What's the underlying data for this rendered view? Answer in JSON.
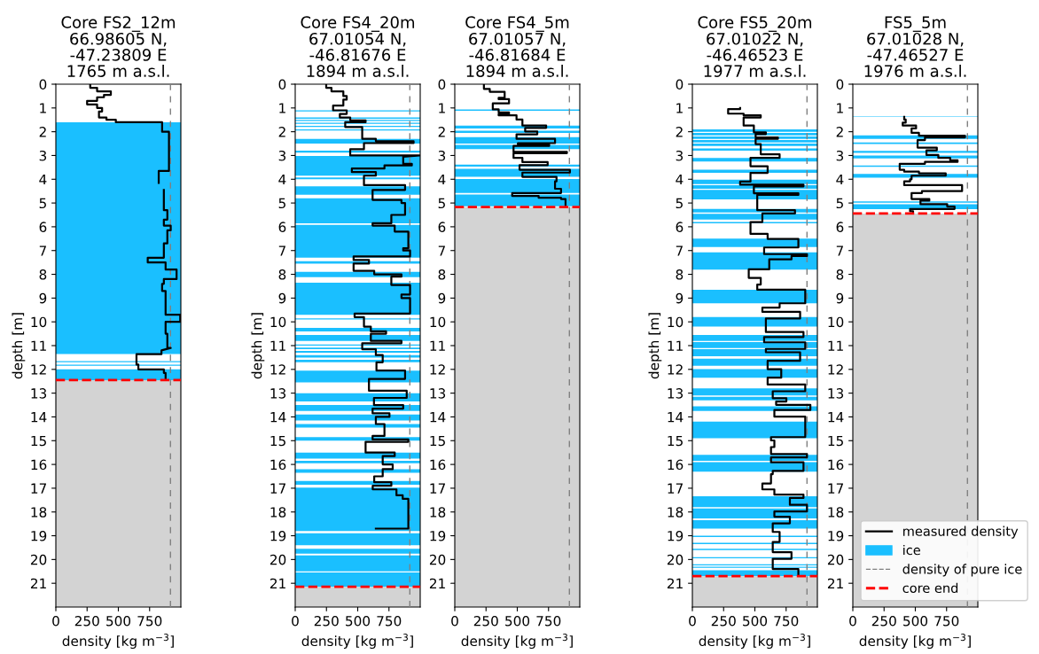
{
  "chart_data": [
    {
      "type": "line",
      "title": "Core FS2_12m\n66.98605 N,\n-47.23809 E\n1765 m a.s.l.",
      "xlabel": "density [kg m$^{−3}$]",
      "ylabel": "depth [m]",
      "xlim": [
        0,
        1000
      ],
      "ylim": [
        22,
        0
      ],
      "xticks": [
        0,
        250,
        500,
        750
      ],
      "yticks": [
        0,
        1,
        2,
        3,
        4,
        5,
        6,
        7,
        8,
        9,
        10,
        11,
        12,
        13,
        14,
        15,
        16,
        17,
        18,
        19,
        20,
        21
      ],
      "series": [
        {
          "color": "#000000",
          "x": [
            275,
            275,
            330,
            330,
            440,
            440,
            385,
            385,
            330,
            330,
            250,
            250,
            330,
            330,
            370,
            370,
            345,
            345,
            405,
            405,
            480,
            480,
            850,
            850,
            905,
            905,
            823,
            823,
            null,
            864,
            864,
            892,
            892,
            864,
            864,
            919,
            919,
            892,
            892,
            864,
            864,
            735,
            735,
            878,
            878,
            966,
            966,
            864,
            864,
            850,
            850,
            878,
            878,
            995,
            995,
            878,
            878,
            892,
            892,
            919,
            845,
            845,
            645,
            645,
            660,
            660,
            864,
            864,
            878,
            878
          ],
          "values": [
            0,
            0.15,
            0.15,
            0.3,
            0.3,
            0.45,
            0.45,
            0.55,
            0.55,
            0.7,
            0.7,
            0.85,
            0.85,
            1.0,
            1.0,
            1.15,
            1.15,
            1.4,
            1.4,
            1.5,
            1.5,
            1.6,
            1.6,
            2.0,
            2.0,
            3.65,
            3.65,
            4.15,
            null,
            4.45,
            5.3,
            5.3,
            5.7,
            5.7,
            5.95,
            5.95,
            6.15,
            6.15,
            6.7,
            6.7,
            7.3,
            7.3,
            7.5,
            7.5,
            7.8,
            7.8,
            8.2,
            8.2,
            8.4,
            8.4,
            8.7,
            8.7,
            9.7,
            9.7,
            10.0,
            10.0,
            10.5,
            10.5,
            11.1,
            11.1,
            11.2,
            11.36,
            11.36,
            11.8,
            11.8,
            12.0,
            12.0,
            12.15,
            12.15,
            12.45
          ]
        }
      ],
      "bands": [
        {
          "axis": "y",
          "from": 1.6,
          "to": 11.35,
          "color": "#1abfff"
        },
        {
          "axis": "y",
          "from": 11.65,
          "to": 11.7,
          "color": "#1abfff"
        },
        {
          "axis": "y",
          "from": 11.8,
          "to": 11.85,
          "color": "#1abfff"
        },
        {
          "axis": "y",
          "from": 12.0,
          "to": 12.45,
          "color": "#1abfff"
        },
        {
          "axis": "y",
          "from": 12.45,
          "to": 22,
          "color": "#d3d3d3"
        }
      ],
      "ref_lines": [
        {
          "axis": "x",
          "value": 917,
          "color": "#808080",
          "line_style": "dashed"
        },
        {
          "axis": "y",
          "value": 12.45,
          "color": "#ff0000",
          "line_style": "dashed"
        }
      ]
    },
    {
      "type": "line",
      "title": "Core FS4_20m\n67.01054 N,\n-46.81676 E\n1894 m a.s.l.",
      "xlabel": "density [kg m$^{−3}$]",
      "ylabel": "depth [m]",
      "xlim": [
        0,
        1000
      ],
      "ylim": [
        22,
        0
      ],
      "xticks": [
        0,
        250,
        500,
        750
      ],
      "yticks": [
        0,
        1,
        2,
        3,
        4,
        5,
        6,
        7,
        8,
        9,
        10,
        11,
        12,
        13,
        14,
        15,
        16,
        17,
        18,
        19,
        20,
        21
      ],
      "series": [
        {
          "color": "#000000",
          "x": [
            248,
            248,
            290,
            290,
            385,
            385,
            412,
            412,
            385,
            385,
            303,
            303,
            412,
            412,
            357,
            357,
            440,
            440,
            563,
            563,
            400,
            400,
            536,
            536,
            645,
            645,
            947,
            947,
            550,
            550,
            440,
            440,
            995,
            864,
            864,
            933,
            933,
            714,
            714,
            453,
            453,
            645,
            645,
            550,
            550,
            879,
            879,
            619,
            619,
            850,
            850,
            879,
            879,
            769,
            769,
            619,
            619,
            796,
            796,
            905,
            905,
            864,
            864,
            919,
            919,
            467,
            467,
            590,
            590,
            467,
            467,
            632,
            632,
            850,
            850,
            769,
            769,
            919,
            919,
            850,
            850,
            919,
            919,
            475,
            475,
            550,
            550,
            605,
            605,
            727,
            727,
            605,
            605,
            850,
            850,
            536,
            536,
            645,
            645,
            700,
            700,
            650,
            650,
            879,
            879,
            590,
            590,
            892,
            892,
            630,
            630,
            864,
            864,
            619,
            619,
            754,
            754,
            645,
            645,
            714,
            714,
            619,
            619,
            905,
            905,
            563,
            563,
            796,
            796,
            700,
            700,
            780,
            780,
            700,
            700,
            632,
            632,
            769,
            769,
            620,
            620,
            810,
            810,
            860,
            860,
            905,
            905,
            645
          ],
          "values": [
            0,
            0.15,
            0.15,
            0.3,
            0.3,
            0.5,
            0.5,
            0.65,
            0.65,
            0.9,
            0.9,
            1.1,
            1.1,
            1.25,
            1.25,
            1.4,
            1.4,
            1.52,
            1.52,
            1.6,
            1.6,
            1.8,
            1.8,
            2.3,
            2.3,
            2.4,
            2.4,
            2.48,
            2.48,
            2.74,
            2.74,
            3.0,
            3.0,
            3.05,
            3.35,
            3.35,
            3.42,
            3.42,
            3.55,
            3.55,
            3.7,
            3.7,
            3.85,
            3.85,
            4.25,
            4.25,
            4.45,
            4.45,
            4.87,
            4.87,
            5.0,
            5.0,
            5.5,
            5.5,
            5.85,
            5.85,
            5.95,
            5.95,
            6.2,
            6.2,
            6.9,
            6.9,
            7.0,
            7.0,
            7.25,
            7.25,
            7.4,
            7.4,
            7.55,
            7.55,
            7.85,
            7.85,
            8.0,
            8.0,
            8.1,
            8.1,
            8.45,
            8.45,
            8.85,
            8.85,
            9.0,
            9.0,
            9.65,
            9.65,
            9.8,
            9.8,
            10.2,
            10.2,
            10.4,
            10.4,
            10.5,
            10.5,
            10.8,
            10.8,
            10.9,
            10.9,
            11.15,
            11.15,
            11.4,
            11.4,
            11.7,
            11.7,
            12.05,
            12.05,
            12.4,
            12.4,
            12.9,
            12.9,
            13.2,
            13.2,
            13.5,
            13.5,
            13.65,
            13.65,
            13.85,
            13.85,
            14.0,
            14.0,
            14.3,
            14.3,
            14.8,
            14.8,
            14.95,
            14.95,
            15.05,
            15.05,
            15.5,
            15.5,
            15.65,
            15.65,
            16.0,
            16.0,
            16.2,
            16.2,
            16.5,
            16.5,
            16.75,
            16.75,
            16.9,
            16.9,
            17.05,
            17.05,
            17.3,
            17.3,
            17.45,
            17.45,
            18.7,
            18.7
          ]
        }
      ],
      "bands": [
        {
          "axis": "y",
          "from": 1.1,
          "to": 1.15,
          "color": "#1abfff"
        },
        {
          "axis": "y",
          "from": 1.4,
          "to": 1.45,
          "color": "#1abfff"
        },
        {
          "axis": "y",
          "from": 1.5,
          "to": 1.55,
          "color": "#1abfff"
        },
        {
          "axis": "y",
          "from": 1.62,
          "to": 1.67,
          "color": "#1abfff"
        },
        {
          "axis": "y",
          "from": 1.75,
          "to": 1.8,
          "color": "#1abfff"
        },
        {
          "axis": "y",
          "from": 1.9,
          "to": 1.95,
          "color": "#1abfff"
        },
        {
          "axis": "y",
          "from": 2.3,
          "to": 2.5,
          "color": "#1abfff"
        },
        {
          "axis": "y",
          "from": 2.8,
          "to": 2.88,
          "color": "#1abfff"
        },
        {
          "axis": "y",
          "from": 3.02,
          "to": 3.85,
          "color": "#1abfff"
        },
        {
          "axis": "y",
          "from": 3.92,
          "to": 4.0,
          "color": "#1abfff"
        },
        {
          "axis": "y",
          "from": 4.3,
          "to": 4.65,
          "color": "#1abfff"
        },
        {
          "axis": "y",
          "from": 4.8,
          "to": 5.85,
          "color": "#1abfff"
        },
        {
          "axis": "y",
          "from": 5.92,
          "to": 7.3,
          "color": "#1abfff"
        },
        {
          "axis": "y",
          "from": 7.45,
          "to": 7.55,
          "color": "#1abfff"
        },
        {
          "axis": "y",
          "from": 7.9,
          "to": 8.12,
          "color": "#1abfff"
        },
        {
          "axis": "y",
          "from": 8.35,
          "to": 9.7,
          "color": "#1abfff"
        },
        {
          "axis": "y",
          "from": 9.85,
          "to": 9.9,
          "color": "#1abfff"
        },
        {
          "axis": "y",
          "from": 10.25,
          "to": 10.4,
          "color": "#1abfff"
        },
        {
          "axis": "y",
          "from": 10.55,
          "to": 10.8,
          "color": "#1abfff"
        },
        {
          "axis": "y",
          "from": 10.95,
          "to": 11.0,
          "color": "#1abfff"
        },
        {
          "axis": "y",
          "from": 11.08,
          "to": 11.15,
          "color": "#1abfff"
        },
        {
          "axis": "y",
          "from": 11.22,
          "to": 11.3,
          "color": "#1abfff"
        },
        {
          "axis": "y",
          "from": 11.4,
          "to": 11.5,
          "color": "#1abfff"
        },
        {
          "axis": "y",
          "from": 11.6,
          "to": 11.7,
          "color": "#1abfff"
        },
        {
          "axis": "y",
          "from": 12.05,
          "to": 12.55,
          "color": "#1abfff"
        },
        {
          "axis": "y",
          "from": 13.0,
          "to": 13.35,
          "color": "#1abfff"
        },
        {
          "axis": "y",
          "from": 13.5,
          "to": 13.75,
          "color": "#1abfff"
        },
        {
          "axis": "y",
          "from": 13.9,
          "to": 14.15,
          "color": "#1abfff"
        },
        {
          "axis": "y",
          "from": 14.3,
          "to": 14.45,
          "color": "#1abfff"
        },
        {
          "axis": "y",
          "from": 14.85,
          "to": 15.0,
          "color": "#1abfff"
        },
        {
          "axis": "y",
          "from": 15.5,
          "to": 15.75,
          "color": "#1abfff"
        },
        {
          "axis": "y",
          "from": 15.85,
          "to": 15.95,
          "color": "#1abfff"
        },
        {
          "axis": "y",
          "from": 16.2,
          "to": 16.35,
          "color": "#1abfff"
        },
        {
          "axis": "y",
          "from": 16.7,
          "to": 16.85,
          "color": "#1abfff"
        },
        {
          "axis": "y",
          "from": 16.98,
          "to": 18.8,
          "color": "#1abfff"
        },
        {
          "axis": "y",
          "from": 18.9,
          "to": 19.4,
          "color": "#1abfff"
        },
        {
          "axis": "y",
          "from": 19.55,
          "to": 19.75,
          "color": "#1abfff"
        },
        {
          "axis": "y",
          "from": 19.83,
          "to": 20.5,
          "color": "#1abfff"
        },
        {
          "axis": "y",
          "from": 20.55,
          "to": 21.15,
          "color": "#1abfff"
        },
        {
          "axis": "y",
          "from": 21.15,
          "to": 22,
          "color": "#d3d3d3"
        }
      ],
      "ref_lines": [
        {
          "axis": "x",
          "value": 917,
          "color": "#808080",
          "line_style": "dashed"
        },
        {
          "axis": "y",
          "value": 21.15,
          "color": "#ff0000",
          "line_style": "dashed"
        }
      ]
    },
    {
      "type": "line",
      "title": "Core FS4_5m\n67.01057 N,\n-46.81684 E\n1894 m a.s.l.",
      "xlabel": "density [kg m$^{−3}$]",
      "xlim": [
        0,
        1000
      ],
      "ylim": [
        22,
        0
      ],
      "xticks": [
        0,
        250,
        500,
        750
      ],
      "yticks": [
        0,
        1,
        2,
        3,
        4,
        5,
        6,
        7,
        8,
        9,
        10,
        11,
        12,
        13,
        14,
        15,
        16,
        17,
        18,
        19,
        20,
        21
      ],
      "series": [
        {
          "color": "#000000",
          "x": [
            233,
            233,
            280,
            280,
            399,
            399,
            351,
            351,
            434,
            434,
            304,
            304,
            351,
            351,
            434,
            434,
            351,
            351,
            494,
            494,
            541,
            541,
            731,
            731,
            563,
            563,
            660,
            660,
            494,
            494,
            802,
            802,
            505,
            505,
            755,
            755,
            470,
            470,
            897,
            897,
            470,
            470,
            541,
            541,
            743,
            743,
            518,
            518,
            921,
            921,
            541,
            541,
            814,
            814,
            802,
            802,
            850,
            850,
            459,
            459,
            671,
            671,
            850,
            850,
            886,
            886
          ],
          "values": [
            0,
            0.2,
            0.2,
            0.32,
            0.32,
            0.57,
            0.57,
            0.63,
            0.63,
            0.81,
            0.81,
            1.06,
            1.06,
            1.19,
            1.19,
            1.25,
            1.25,
            1.31,
            1.31,
            1.49,
            1.49,
            1.74,
            1.74,
            1.84,
            1.84,
            1.99,
            1.99,
            2.11,
            2.11,
            2.3,
            2.3,
            2.48,
            2.48,
            2.54,
            2.54,
            2.6,
            2.6,
            2.85,
            2.85,
            2.9,
            2.9,
            3.1,
            3.1,
            3.28,
            3.28,
            3.41,
            3.41,
            3.6,
            3.6,
            3.72,
            3.72,
            3.9,
            3.9,
            4.09,
            4.09,
            4.4,
            4.4,
            4.58,
            4.58,
            4.7,
            4.7,
            4.78,
            4.78,
            4.83,
            4.83,
            5.17
          ]
        }
      ],
      "bands": [
        {
          "axis": "y",
          "from": 1.06,
          "to": 1.12,
          "color": "#1abfff"
        },
        {
          "axis": "y",
          "from": 1.74,
          "to": 1.86,
          "color": "#1abfff"
        },
        {
          "axis": "y",
          "from": 1.96,
          "to": 2.05,
          "color": "#1abfff"
        },
        {
          "axis": "y",
          "from": 2.23,
          "to": 2.5,
          "color": "#1abfff"
        },
        {
          "axis": "y",
          "from": 2.55,
          "to": 2.73,
          "color": "#1abfff"
        },
        {
          "axis": "y",
          "from": 3.38,
          "to": 3.47,
          "color": "#1abfff"
        },
        {
          "axis": "y",
          "from": 3.56,
          "to": 3.9,
          "color": "#1abfff"
        },
        {
          "axis": "y",
          "from": 3.99,
          "to": 4.58,
          "color": "#1abfff"
        },
        {
          "axis": "y",
          "from": 4.64,
          "to": 5.14,
          "color": "#1abfff"
        },
        {
          "axis": "y",
          "from": 5.17,
          "to": 22,
          "color": "#d3d3d3"
        }
      ],
      "ref_lines": [
        {
          "axis": "x",
          "value": 917,
          "color": "#808080",
          "line_style": "dashed"
        },
        {
          "axis": "y",
          "value": 5.17,
          "color": "#ff0000",
          "line_style": "dashed"
        }
      ]
    },
    {
      "type": "line",
      "title": "Core FS5_20m\n67.01022 N,\n-46.46523 E\n1977 m a.s.l.",
      "xlabel": "density [kg m$^{−3}$]",
      "ylabel": "depth [m]",
      "xlim": [
        0,
        1000
      ],
      "ylim": [
        22,
        0
      ],
      "xticks": [
        0,
        250,
        500,
        750
      ],
      "yticks": [
        0,
        1,
        2,
        3,
        4,
        5,
        6,
        7,
        8,
        9,
        10,
        11,
        12,
        13,
        14,
        15,
        16,
        17,
        18,
        19,
        20,
        21
      ],
      "series": [
        {
          "color": "#000000",
          "x": [
            382,
            382,
            286,
            286,
            410,
            410,
            547,
            547,
            410,
            410,
            492,
            492,
            588,
            588,
            506,
            506,
            684,
            684,
            506,
            506,
            547,
            547,
            698,
            698,
            465,
            465,
            602,
            602,
            465,
            465,
            382,
            382,
            889,
            889,
            492,
            492,
            848,
            848,
            519,
            519,
            821,
            821,
            560,
            560,
            465,
            465,
            602,
            602,
            848,
            848,
            574,
            574,
            917,
            917,
            793,
            793,
            615,
            615,
            451,
            451,
            547,
            547,
            519,
            519,
            903,
            903,
            698,
            698,
            560,
            560,
            862,
            862,
            588,
            588,
            889,
            889,
            574,
            574,
            903,
            903,
            588,
            588,
            862,
            862,
            602,
            602,
            711,
            711,
            602,
            602,
            903,
            903,
            643,
            643,
            752,
            752,
            670,
            670,
            944,
            944,
            656,
            656,
            903,
            903,
            629,
            629,
            656,
            656,
            629,
            629,
            917,
            917,
            629,
            629,
            889,
            889,
            643,
            643,
            629,
            629,
            560,
            560,
            656,
            656,
            889,
            889,
            780,
            780,
            917,
            917,
            656,
            656,
            780,
            780,
            643,
            643,
            698,
            698,
            643,
            643,
            793,
            793,
            643,
            643,
            848,
            848
          ],
          "values": [
            1.0,
            1.05,
            1.05,
            1.24,
            1.24,
            1.31,
            1.31,
            1.4,
            1.4,
            1.74,
            1.74,
            2.03,
            2.03,
            2.1,
            2.1,
            2.24,
            2.24,
            2.3,
            2.3,
            2.52,
            2.52,
            2.95,
            2.95,
            3.1,
            3.1,
            3.45,
            3.45,
            3.73,
            3.73,
            4.1,
            4.1,
            4.23,
            4.23,
            4.3,
            4.3,
            4.59,
            4.59,
            4.66,
            4.66,
            5.3,
            5.3,
            5.44,
            5.44,
            5.8,
            5.8,
            6.3,
            6.3,
            6.51,
            6.51,
            6.87,
            6.87,
            7.15,
            7.15,
            7.23,
            7.23,
            7.37,
            7.37,
            7.79,
            7.79,
            8.15,
            8.15,
            8.43,
            8.43,
            8.65,
            8.65,
            9.22,
            9.22,
            9.4,
            9.4,
            9.58,
            9.58,
            9.86,
            9.86,
            10.43,
            10.43,
            10.64,
            10.64,
            10.86,
            10.86,
            11.14,
            11.14,
            11.28,
            11.28,
            11.64,
            11.64,
            11.99,
            11.99,
            12.35,
            12.35,
            12.64,
            12.64,
            12.92,
            12.92,
            13.21,
            13.21,
            13.35,
            13.35,
            13.49,
            13.49,
            13.71,
            13.71,
            13.99,
            13.99,
            14.85,
            14.85,
            14.99,
            14.99,
            15.27,
            15.27,
            15.56,
            15.56,
            15.7,
            15.7,
            15.91,
            15.91,
            16.27,
            16.27,
            16.41,
            16.41,
            16.8,
            16.8,
            17.05,
            17.05,
            17.27,
            17.27,
            17.41,
            17.41,
            17.7,
            17.7,
            17.98,
            17.98,
            18.2,
            18.2,
            18.48,
            18.48,
            18.84,
            18.84,
            19.26,
            19.26,
            19.69,
            19.69,
            19.97,
            19.97,
            20.4,
            20.4,
            20.69
          ]
        }
      ],
      "bands": [
        {
          "axis": "y",
          "from": 1.9,
          "to": 2.0,
          "color": "#1abfff"
        },
        {
          "axis": "y",
          "from": 2.05,
          "to": 2.15,
          "color": "#1abfff"
        },
        {
          "axis": "y",
          "from": 2.2,
          "to": 2.3,
          "color": "#1abfff"
        },
        {
          "axis": "y",
          "from": 2.35,
          "to": 2.45,
          "color": "#1abfff"
        },
        {
          "axis": "y",
          "from": 2.5,
          "to": 2.6,
          "color": "#1abfff"
        },
        {
          "axis": "y",
          "from": 2.7,
          "to": 2.8,
          "color": "#1abfff"
        },
        {
          "axis": "y",
          "from": 3.1,
          "to": 3.25,
          "color": "#1abfff"
        },
        {
          "axis": "y",
          "from": 3.6,
          "to": 3.73,
          "color": "#1abfff"
        },
        {
          "axis": "y",
          "from": 4.02,
          "to": 4.2,
          "color": "#1abfff"
        },
        {
          "axis": "y",
          "from": 4.25,
          "to": 4.4,
          "color": "#1abfff"
        },
        {
          "axis": "y",
          "from": 4.45,
          "to": 4.85,
          "color": "#1abfff"
        },
        {
          "axis": "y",
          "from": 5.25,
          "to": 5.4,
          "color": "#1abfff"
        },
        {
          "axis": "y",
          "from": 5.45,
          "to": 5.7,
          "color": "#1abfff"
        },
        {
          "axis": "y",
          "from": 5.8,
          "to": 5.85,
          "color": "#1abfff"
        },
        {
          "axis": "y",
          "from": 6.5,
          "to": 6.85,
          "color": "#1abfff"
        },
        {
          "axis": "y",
          "from": 7.08,
          "to": 7.8,
          "color": "#1abfff"
        },
        {
          "axis": "y",
          "from": 8.65,
          "to": 9.22,
          "color": "#1abfff"
        },
        {
          "axis": "y",
          "from": 9.8,
          "to": 10.2,
          "color": "#1abfff"
        },
        {
          "axis": "y",
          "from": 10.55,
          "to": 10.8,
          "color": "#1abfff"
        },
        {
          "axis": "y",
          "from": 10.85,
          "to": 11.1,
          "color": "#1abfff"
        },
        {
          "axis": "y",
          "from": 11.15,
          "to": 11.45,
          "color": "#1abfff"
        },
        {
          "axis": "y",
          "from": 11.55,
          "to": 11.85,
          "color": "#1abfff"
        },
        {
          "axis": "y",
          "from": 11.99,
          "to": 12.35,
          "color": "#1abfff"
        },
        {
          "axis": "y",
          "from": 12.8,
          "to": 13.1,
          "color": "#1abfff"
        },
        {
          "axis": "y",
          "from": 13.15,
          "to": 13.3,
          "color": "#1abfff"
        },
        {
          "axis": "y",
          "from": 13.55,
          "to": 13.75,
          "color": "#1abfff"
        },
        {
          "axis": "y",
          "from": 14.2,
          "to": 14.9,
          "color": "#1abfff"
        },
        {
          "axis": "y",
          "from": 15.6,
          "to": 15.85,
          "color": "#1abfff"
        },
        {
          "axis": "y",
          "from": 15.9,
          "to": 16.3,
          "color": "#1abfff"
        },
        {
          "axis": "y",
          "from": 17.34,
          "to": 17.8,
          "color": "#1abfff"
        },
        {
          "axis": "y",
          "from": 17.85,
          "to": 18.27,
          "color": "#1abfff"
        },
        {
          "axis": "y",
          "from": 18.35,
          "to": 18.7,
          "color": "#1abfff"
        },
        {
          "axis": "y",
          "from": 19.0,
          "to": 19.05,
          "color": "#1abfff"
        },
        {
          "axis": "y",
          "from": 19.3,
          "to": 19.35,
          "color": "#1abfff"
        },
        {
          "axis": "y",
          "from": 19.55,
          "to": 19.6,
          "color": "#1abfff"
        },
        {
          "axis": "y",
          "from": 19.9,
          "to": 19.95,
          "color": "#1abfff"
        },
        {
          "axis": "y",
          "from": 20.2,
          "to": 20.25,
          "color": "#1abfff"
        },
        {
          "axis": "y",
          "from": 20.3,
          "to": 20.35,
          "color": "#1abfff"
        },
        {
          "axis": "y",
          "from": 20.45,
          "to": 20.7,
          "color": "#1abfff"
        },
        {
          "axis": "y",
          "from": 20.7,
          "to": 22,
          "color": "#d3d3d3"
        }
      ],
      "ref_lines": [
        {
          "axis": "x",
          "value": 917,
          "color": "#808080",
          "line_style": "dashed"
        },
        {
          "axis": "y",
          "value": 20.7,
          "color": "#ff0000",
          "line_style": "dashed"
        }
      ]
    },
    {
      "type": "line",
      "title": "FS5_5m\n67.01028 N,\n-47.46527 E\n1976 m a.s.l.",
      "xlabel": "density [kg m$^{−3}$]",
      "xlim": [
        0,
        1000
      ],
      "ylim": [
        22,
        0
      ],
      "xticks": [
        0,
        250,
        500,
        750
      ],
      "yticks": [
        0,
        1,
        2,
        3,
        4,
        5,
        6,
        7,
        8,
        9,
        10,
        11,
        12,
        13,
        14,
        15,
        16,
        17,
        18,
        19,
        20,
        21
      ],
      "legend": "bottom right",
      "series": [
        {
          "name": "measured density",
          "color": "#000000",
          "x": [
            411,
            411,
            423,
            423,
            399,
            399,
            506,
            506,
            470,
            470,
            529,
            529,
            897,
            897,
            577,
            577,
            518,
            518,
            672,
            672,
            589,
            589,
            684,
            684,
            779,
            779,
            838,
            838,
            577,
            577,
            375,
            375,
            411,
            411,
            529,
            529,
            743,
            743,
            470,
            470,
            458,
            458,
            411,
            411,
            874,
            874,
            553,
            553,
            470,
            470,
            612,
            612,
            541,
            541,
            755,
            755,
            814,
            814,
            458,
            458,
            482,
            482
          ],
          "values": [
            1.37,
            1.49,
            1.49,
            1.62,
            1.62,
            1.74,
            1.74,
            1.86,
            1.86,
            2.05,
            2.05,
            2.17,
            2.17,
            2.24,
            2.24,
            2.35,
            2.35,
            2.67,
            2.67,
            2.78,
            2.78,
            2.98,
            2.98,
            3.1,
            3.1,
            3.2,
            3.2,
            3.27,
            3.27,
            3.35,
            3.35,
            3.6,
            3.6,
            3.68,
            3.68,
            3.75,
            3.75,
            3.85,
            3.85,
            4.0,
            4.0,
            4.09,
            4.09,
            4.25,
            4.25,
            4.5,
            4.5,
            4.58,
            4.58,
            4.83,
            4.83,
            4.9,
            4.9,
            5.05,
            5.05,
            5.15,
            5.15,
            5.25,
            5.25,
            5.35,
            5.35,
            5.44
          ]
        }
      ],
      "bands": [
        {
          "axis": "y",
          "from": 1.35,
          "to": 1.37,
          "color": "#1abfff",
          "label": "ice"
        },
        {
          "axis": "y",
          "from": 2.15,
          "to": 2.3,
          "color": "#1abfff"
        },
        {
          "axis": "y",
          "from": 2.45,
          "to": 2.52,
          "color": "#1abfff"
        },
        {
          "axis": "y",
          "from": 2.81,
          "to": 2.89,
          "color": "#1abfff"
        },
        {
          "axis": "y",
          "from": 3.0,
          "to": 3.12,
          "color": "#1abfff"
        },
        {
          "axis": "y",
          "from": 3.42,
          "to": 3.48,
          "color": "#1abfff"
        },
        {
          "axis": "y",
          "from": 3.78,
          "to": 3.93,
          "color": "#1abfff"
        },
        {
          "axis": "y",
          "from": 4.93,
          "to": 4.99,
          "color": "#1abfff"
        },
        {
          "axis": "y",
          "from": 5.05,
          "to": 5.26,
          "color": "#1abfff"
        },
        {
          "axis": "y",
          "from": 5.44,
          "to": 22,
          "color": "#d3d3d3"
        }
      ],
      "ref_lines": [
        {
          "axis": "x",
          "value": 917,
          "color": "#808080",
          "line_style": "dashed",
          "label": "density of pure ice"
        },
        {
          "axis": "y",
          "value": 5.44,
          "color": "#ff0000",
          "line_style": "dashed",
          "label": "core end"
        }
      ]
    }
  ]
}
